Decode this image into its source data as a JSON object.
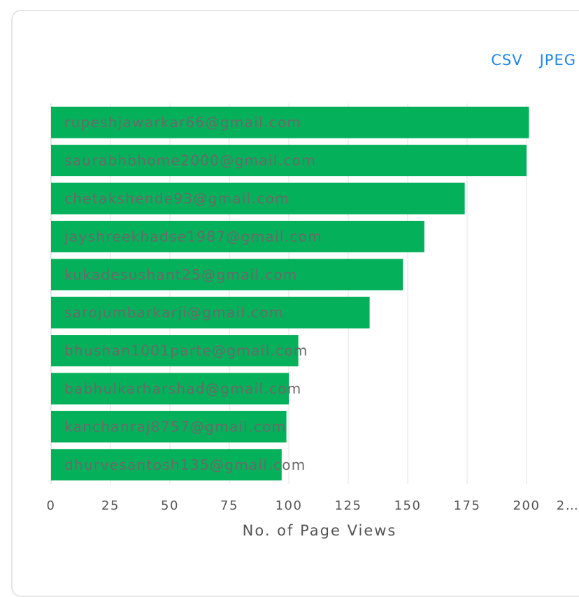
{
  "actions": {
    "csv_label": "CSV",
    "jpeg_label": "JPEG"
  },
  "chart_data": {
    "type": "bar",
    "orientation": "horizontal",
    "categories": [
      "rupeshjawarkar66@gmail.com",
      "saurabhbhome2000@gmail.com",
      "chetakshende93@gmail.com",
      "jayshreekhadse1987@gmail.com",
      "kukadesushant25@gmail.com",
      "sarojumbarkarji@gmail.com",
      "bhushan1001parte@gmail.com",
      "babhulkarharshad@gmail.com",
      "kanchanraj8757@gmail.com",
      "dhurvesantosh135@gmail.com"
    ],
    "values": [
      201,
      200,
      174,
      157,
      148,
      134,
      104,
      100,
      99,
      97
    ],
    "xlabel": "No. of Page Views",
    "ylabel": "",
    "xlim": [
      0,
      225
    ],
    "xticks": [
      "0",
      "25",
      "50",
      "75",
      "100",
      "125",
      "150",
      "175",
      "200",
      "2…"
    ],
    "bar_color": "#05b05a",
    "grid": true
  }
}
